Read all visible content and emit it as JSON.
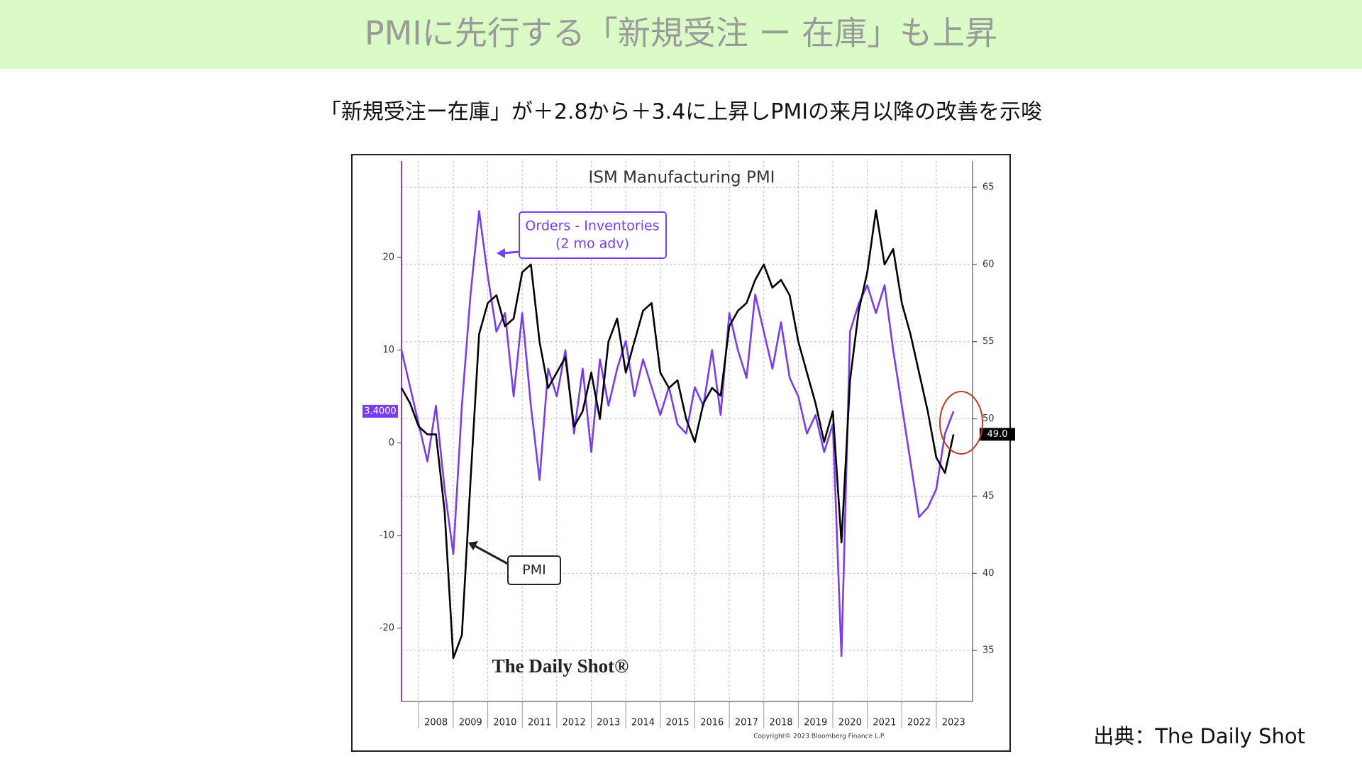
{
  "header": {
    "title": "PMIに先行する「新規受注 ー 在庫」も上昇"
  },
  "subtitle": "「新規受注ー在庫」が＋2.8から＋3.4に上昇しPMIの来月以降の改善を示唆",
  "source": "出典：The Daily Shot",
  "chart_data": {
    "type": "line",
    "title": "ISM Manufacturing PMI",
    "annotations": [
      "Orders - Inventories",
      "(2 mo adv)",
      "PMI"
    ],
    "watermark": "The Daily Shot®",
    "copyright": "Copyright© 2023 Bloomberg Finance L.P.",
    "x": [
      2007.5,
      2007.75,
      2008,
      2008.25,
      2008.5,
      2008.75,
      2009,
      2009.25,
      2009.5,
      2009.75,
      2010,
      2010.25,
      2010.5,
      2010.75,
      2011,
      2011.25,
      2011.5,
      2011.75,
      2012,
      2012.25,
      2012.5,
      2012.75,
      2013,
      2013.25,
      2013.5,
      2013.75,
      2014,
      2014.25,
      2014.5,
      2014.75,
      2015,
      2015.25,
      2015.5,
      2015.75,
      2016,
      2016.25,
      2016.5,
      2016.75,
      2017,
      2017.25,
      2017.5,
      2017.75,
      2018,
      2018.25,
      2018.5,
      2018.75,
      2019,
      2019.25,
      2019.5,
      2019.75,
      2020,
      2020.25,
      2020.5,
      2020.75,
      2021,
      2021.25,
      2021.5,
      2021.75,
      2022,
      2022.25,
      2022.5,
      2022.75,
      2023,
      2023.25,
      2023.5
    ],
    "series": [
      {
        "name": "Orders - Inventories",
        "color": "#7a3cf0",
        "axis": "y",
        "values": [
          10,
          6,
          2,
          -2,
          4,
          -5,
          -12,
          4,
          16,
          25,
          18,
          12,
          14,
          5,
          14,
          4,
          -4,
          8,
          5,
          10,
          1,
          8,
          -1,
          9,
          4,
          8,
          11,
          5,
          9,
          6,
          3,
          6,
          2,
          1,
          6,
          4,
          10,
          3,
          14,
          10,
          7,
          16,
          12,
          8,
          13,
          7,
          5,
          1,
          3,
          -1,
          2,
          -23,
          12,
          15,
          17,
          14,
          17,
          10,
          4,
          -2,
          -8,
          -7,
          -5,
          1,
          3.4
        ],
        "value_labels": [
          null,
          null,
          null,
          null,
          null,
          null,
          null,
          null,
          null,
          null,
          null,
          null,
          null,
          null,
          null,
          null,
          null,
          null,
          null,
          null,
          null,
          null,
          null,
          null,
          null,
          null,
          null,
          null,
          null,
          null,
          null,
          null,
          null,
          null,
          null,
          null,
          null,
          null,
          null,
          null,
          null,
          null,
          null,
          null,
          null,
          null,
          null,
          null,
          null,
          null,
          null,
          null,
          null,
          null,
          null,
          null,
          null,
          null,
          null,
          null,
          null,
          null,
          null,
          null,
          "3.4000"
        ]
      },
      {
        "name": "PMI",
        "color": "#000000",
        "axis": "y2",
        "values": [
          52,
          51,
          49.5,
          49,
          49,
          44,
          34.5,
          36,
          46,
          55.5,
          57.5,
          58,
          56,
          56.5,
          59.5,
          60,
          55,
          52,
          53,
          54,
          49.5,
          50.5,
          53,
          50,
          55,
          56.5,
          53,
          55,
          57,
          57.5,
          53,
          52,
          52.5,
          50,
          48.5,
          51,
          52,
          51.5,
          56,
          57,
          57.5,
          59,
          60,
          58.5,
          59,
          58,
          55,
          53,
          51,
          48.5,
          50.5,
          42,
          52.5,
          57,
          59.5,
          63.5,
          60,
          61,
          57.5,
          55.5,
          53,
          50.5,
          47.5,
          46.5,
          49
        ],
        "value_labels": [
          null,
          null,
          null,
          null,
          null,
          null,
          null,
          null,
          null,
          null,
          null,
          null,
          null,
          null,
          null,
          null,
          null,
          null,
          null,
          null,
          null,
          null,
          null,
          null,
          null,
          null,
          null,
          null,
          null,
          null,
          null,
          null,
          null,
          null,
          null,
          null,
          null,
          null,
          null,
          null,
          null,
          null,
          null,
          null,
          null,
          null,
          null,
          null,
          null,
          null,
          null,
          null,
          null,
          null,
          null,
          null,
          null,
          null,
          null,
          null,
          null,
          null,
          null,
          null,
          "49.0"
        ]
      }
    ],
    "xlim": [
      2007.5,
      2024.05
    ],
    "xticks": [
      2008,
      2009,
      2010,
      2011,
      2012,
      2013,
      2014,
      2015,
      2016,
      2017,
      2018,
      2019,
      2020,
      2021,
      2022,
      2023
    ],
    "ylim": [
      -27.9,
      30.4
    ],
    "yticks": [
      -20,
      -10,
      0,
      10,
      20
    ],
    "y2lim": [
      31.7,
      66.7
    ],
    "y2ticks": [
      35,
      40,
      45,
      50,
      55,
      60,
      65
    ],
    "grid": true
  }
}
